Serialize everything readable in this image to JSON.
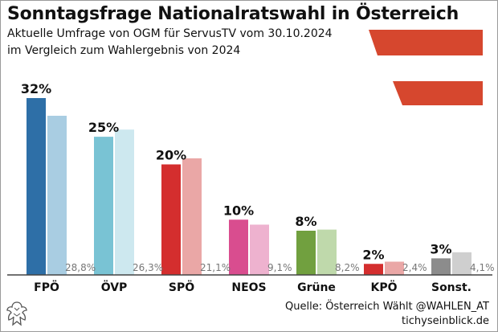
{
  "header": {
    "title": "Sonntagsfrage Nationalratswahl in Österreich",
    "subtitle_line1": "Aktuelle Umfrage von OGM für ServusTV vom 30.10.2024",
    "subtitle_line2": "im Vergleich zum Wahlergebnis von 2024"
  },
  "footer": {
    "source": "Quelle: Österreich Wählt @WAHLEN_AT",
    "site": "tichyseinblick.de"
  },
  "colors": {
    "flag_red": "#d6472e"
  },
  "chart_data": {
    "type": "bar",
    "categories": [
      "FPÖ",
      "ÖVP",
      "SPÖ",
      "NEOS",
      "Grüne",
      "KPÖ",
      "Sonst."
    ],
    "series": [
      {
        "values": [
          32,
          25,
          20,
          10,
          8,
          2,
          3
        ],
        "labels": [
          "32%",
          "25%",
          "20%",
          "10%",
          "8%",
          "2%",
          "3%"
        ],
        "colors": [
          "#2e6fa7",
          "#79c3d4",
          "#d42e2e",
          "#d94d8f",
          "#71a03f",
          "#d42e2e",
          "#8c8c8c"
        ]
      },
      {
        "values": [
          28.8,
          26.3,
          21.1,
          9.1,
          8.2,
          2.4,
          4.1
        ],
        "labels": [
          "28,8%",
          "26,3%",
          "21,1%",
          "9,1%",
          "8,2%",
          "2,4%",
          "4,1%"
        ],
        "colors": [
          "#a9cde2",
          "#cde8ef",
          "#eaa7a6",
          "#eeb2cf",
          "#bfd9ab",
          "#eaa7a6",
          "#cfcfcf"
        ]
      }
    ],
    "ylim": [
      0,
      32
    ],
    "grid": false,
    "legend": "none"
  }
}
